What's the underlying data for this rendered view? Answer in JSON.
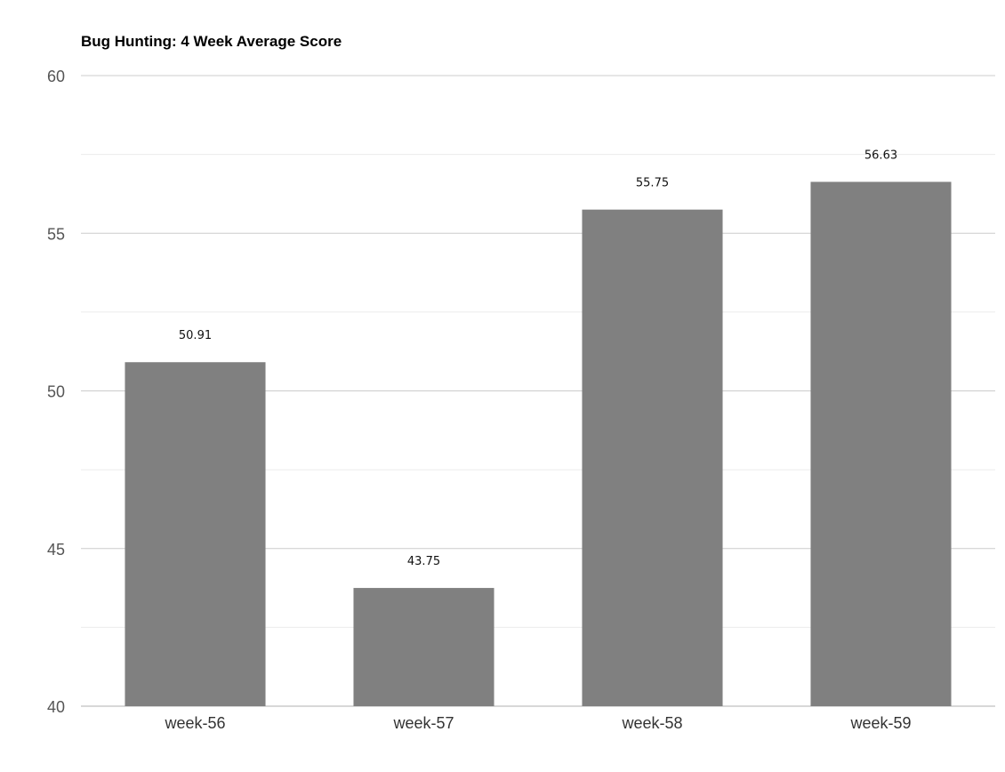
{
  "chart_data": {
    "type": "bar",
    "title": "Bug Hunting: 4 Week Average Score",
    "xlabel": "",
    "ylabel": "",
    "categories": [
      "week-56",
      "week-57",
      "week-58",
      "week-59"
    ],
    "values": [
      50.91,
      43.75,
      55.75,
      56.63
    ],
    "data_labels": [
      "50.91",
      "43.75",
      "55.75",
      "56.63"
    ],
    "ylim": [
      40,
      60
    ],
    "y_ticks": [
      40,
      45,
      50,
      55,
      60
    ],
    "y_tick_labels": [
      "40",
      "45",
      "50",
      "55",
      "60"
    ],
    "minor_gridlines": [
      42.5,
      47.5,
      52.5,
      57.5
    ],
    "grid": true,
    "legend": "none",
    "colors": {
      "bar": "#808080",
      "major_grid": "#cccccc",
      "minor_grid": "#ebebeb",
      "baseline": "#b0b0b0"
    }
  }
}
